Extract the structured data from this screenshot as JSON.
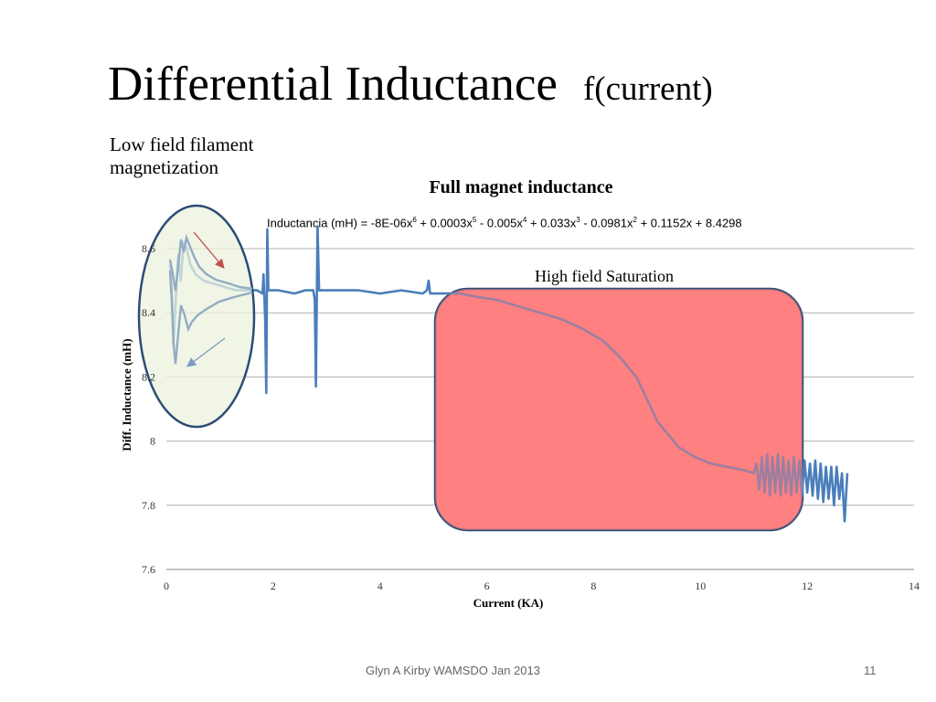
{
  "slide": {
    "title": "Differential Inductance",
    "subtitle": "f(current)",
    "note_line1": "Low field filament",
    "note_line2": "magnetization",
    "footer_left": "Glyn A Kirby  WAMSDO Jan 2013",
    "page_number": "11"
  },
  "chart_data": {
    "type": "line",
    "title": "Full magnet inductance",
    "equation": {
      "prefix": "Inductancia (mH) = -8E-06x",
      "t6": "6",
      "after6": " + 0.0003x",
      "t5": "5",
      "after5": " - 0.005x",
      "t4": "4",
      "after4": " + 0.033x",
      "t3": "3",
      "after3": " - 0.0981x",
      "t2": "2",
      "after2": " + 0.1152x + 8.4298"
    },
    "xlabel": "Current (KA)",
    "ylabel": "Diff.  Inductance (mH)",
    "xlim": [
      0,
      14
    ],
    "ylim": [
      7.6,
      8.6
    ],
    "xticks": [
      "0",
      "2",
      "4",
      "6",
      "8",
      "10",
      "12",
      "14"
    ],
    "yticks": [
      "7.6",
      "7.8",
      "8",
      "8.2",
      "8.4",
      "8.6"
    ],
    "grid": "horizontal",
    "series": [
      {
        "color": "#4a7ebb",
        "points": [
          [
            0.07,
            8.55
          ],
          [
            0.1,
            8.48
          ],
          [
            0.13,
            8.3
          ],
          [
            0.17,
            8.42
          ],
          [
            0.22,
            8.58
          ],
          [
            0.27,
            8.5
          ],
          [
            0.32,
            8.62
          ],
          [
            0.38,
            8.6
          ],
          [
            0.45,
            8.55
          ],
          [
            0.55,
            8.52
          ],
          [
            0.7,
            8.5
          ],
          [
            0.9,
            8.49
          ],
          [
            1.1,
            8.48
          ],
          [
            1.3,
            8.47
          ],
          [
            1.5,
            8.47
          ],
          [
            1.7,
            8.47
          ],
          [
            1.8,
            8.46
          ],
          [
            1.82,
            8.52
          ],
          [
            1.85,
            8.38
          ],
          [
            1.87,
            8.15
          ],
          [
            1.89,
            8.66
          ],
          [
            1.91,
            8.47
          ],
          [
            2.1,
            8.47
          ],
          [
            2.4,
            8.46
          ],
          [
            2.6,
            8.47
          ],
          [
            2.75,
            8.47
          ],
          [
            2.78,
            8.44
          ],
          [
            2.8,
            8.17
          ],
          [
            2.83,
            8.67
          ],
          [
            2.86,
            8.47
          ],
          [
            3.2,
            8.47
          ],
          [
            3.6,
            8.47
          ],
          [
            4.0,
            8.46
          ],
          [
            4.4,
            8.47
          ],
          [
            4.8,
            8.46
          ],
          [
            4.88,
            8.47
          ],
          [
            4.91,
            8.5
          ],
          [
            4.94,
            8.46
          ],
          [
            5.2,
            8.46
          ],
          [
            5.5,
            8.46
          ],
          [
            5.8,
            8.45
          ],
          [
            6.2,
            8.44
          ],
          [
            6.6,
            8.42
          ],
          [
            7.0,
            8.4
          ],
          [
            7.4,
            8.38
          ],
          [
            7.8,
            8.35
          ],
          [
            8.2,
            8.31
          ],
          [
            8.5,
            8.26
          ],
          [
            8.8,
            8.2
          ],
          [
            9.0,
            8.13
          ],
          [
            9.2,
            8.06
          ],
          [
            9.4,
            8.02
          ],
          [
            9.6,
            7.98
          ],
          [
            9.9,
            7.95
          ],
          [
            10.2,
            7.93
          ],
          [
            10.5,
            7.92
          ],
          [
            10.8,
            7.91
          ],
          [
            11.0,
            7.9
          ],
          [
            11.05,
            7.93
          ],
          [
            11.1,
            7.85
          ],
          [
            11.15,
            7.95
          ],
          [
            11.2,
            7.84
          ],
          [
            11.25,
            7.96
          ],
          [
            11.3,
            7.83
          ],
          [
            11.35,
            7.95
          ],
          [
            11.4,
            7.84
          ],
          [
            11.45,
            7.96
          ],
          [
            11.5,
            7.83
          ],
          [
            11.55,
            7.95
          ],
          [
            11.6,
            7.84
          ],
          [
            11.65,
            7.94
          ],
          [
            11.7,
            7.83
          ],
          [
            11.75,
            7.95
          ],
          [
            11.8,
            7.84
          ],
          [
            11.85,
            7.94
          ],
          [
            11.9,
            7.83
          ],
          [
            11.95,
            7.94
          ],
          [
            12.0,
            7.84
          ],
          [
            12.05,
            7.93
          ],
          [
            12.1,
            7.83
          ],
          [
            12.15,
            7.94
          ],
          [
            12.2,
            7.82
          ],
          [
            12.25,
            7.93
          ],
          [
            12.3,
            7.81
          ],
          [
            12.35,
            7.92
          ],
          [
            12.4,
            7.82
          ],
          [
            12.45,
            7.92
          ],
          [
            12.5,
            7.8
          ],
          [
            12.55,
            7.92
          ],
          [
            12.6,
            7.82
          ],
          [
            12.65,
            7.9
          ],
          [
            12.7,
            7.75
          ],
          [
            12.75,
            7.9
          ]
        ]
      }
    ],
    "annotations": {
      "high_field_label": "High field Saturation",
      "low_field_fill": "#ebf1de",
      "low_field_stroke": "#2c4d75",
      "high_field_fill": "#ff8080",
      "high_field_stroke": "#2c4d75"
    }
  }
}
